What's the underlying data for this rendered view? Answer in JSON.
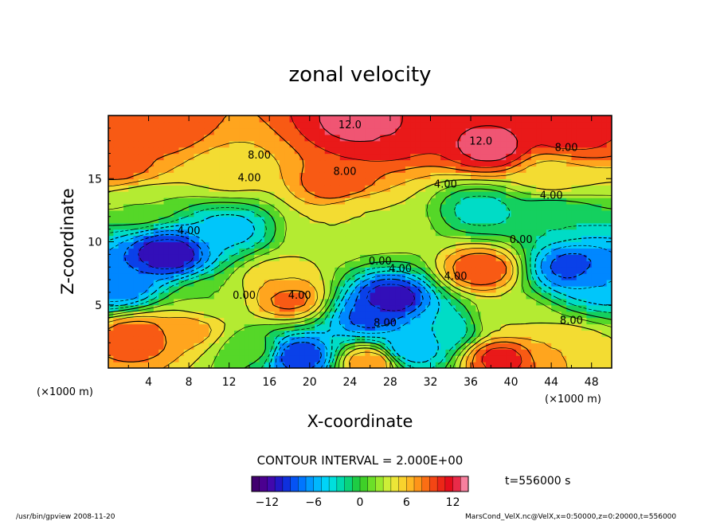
{
  "chart_data": {
    "type": "heatmap",
    "title": "zonal velocity",
    "xlabel": "X-coordinate",
    "ylabel": "Z-coordinate",
    "x_unit": "(×1000 m)",
    "z_unit": "(×1000 m)",
    "xlim": [
      0,
      50
    ],
    "ylim": [
      0,
      20
    ],
    "x_ticks": [
      "4",
      "8",
      "12",
      "16",
      "20",
      "24",
      "28",
      "32",
      "36",
      "40",
      "44",
      "48"
    ],
    "y_ticks": [
      "5",
      "10",
      "15"
    ],
    "contour_interval_text": "CONTOUR INTERVAL = 2.000E+00",
    "time_text": "t=556000 s",
    "colorbar": {
      "vmin": -14,
      "vmax": 14,
      "ticks": [
        "−12",
        "−6",
        "0",
        "6",
        "12"
      ]
    },
    "contour_labels": [
      {
        "text": "12.0",
        "x": 24.0,
        "z": 19.0
      },
      {
        "text": "12.0",
        "x": 37.0,
        "z": 17.7
      },
      {
        "text": "8.00",
        "x": 45.5,
        "z": 17.2
      },
      {
        "text": "8.00",
        "x": 15.0,
        "z": 16.6
      },
      {
        "text": "8.00",
        "x": 23.5,
        "z": 15.3
      },
      {
        "text": "4.00",
        "x": 14.0,
        "z": 14.8
      },
      {
        "text": "4.00",
        "x": 33.5,
        "z": 14.3
      },
      {
        "text": "4.00",
        "x": 44.0,
        "z": 13.4
      },
      {
        "text": "4.00",
        "x": 8.0,
        "z": 10.6
      },
      {
        "text": "0.00",
        "x": 41.0,
        "z": 9.9
      },
      {
        "text": "0.00",
        "x": 27.0,
        "z": 8.2
      },
      {
        "text": "4.00",
        "x": 29.0,
        "z": 7.6
      },
      {
        "text": "4.00",
        "x": 34.5,
        "z": 7.0
      },
      {
        "text": "0.00",
        "x": 13.5,
        "z": 5.5
      },
      {
        "text": "4.00",
        "x": 19.0,
        "z": 5.5
      },
      {
        "text": "8.00",
        "x": 46.0,
        "z": 3.5
      },
      {
        "text": "8.00",
        "x": 27.5,
        "z": 3.3
      }
    ],
    "field_features": [
      {
        "x": 25,
        "z": 19.5,
        "value": 13
      },
      {
        "x": 27,
        "z": 18.5,
        "value": 12
      },
      {
        "x": 38,
        "z": 17.5,
        "value": 13
      },
      {
        "x": 5,
        "z": 19,
        "value": 10
      },
      {
        "x": 46,
        "z": 18.5,
        "value": 11
      },
      {
        "x": 1,
        "z": 16,
        "value": 9
      },
      {
        "x": 23,
        "z": 14.5,
        "value": 10
      },
      {
        "x": 12,
        "z": 15.5,
        "value": 5
      },
      {
        "x": 44,
        "z": 15.2,
        "value": 5
      },
      {
        "x": 3,
        "z": 13,
        "value": 2
      },
      {
        "x": 25,
        "z": 12.5,
        "value": 4
      },
      {
        "x": 37,
        "z": 12.5,
        "value": -3
      },
      {
        "x": 44,
        "z": 12,
        "value": -2
      },
      {
        "x": 6,
        "z": 9,
        "value": -12
      },
      {
        "x": 1,
        "z": 6.5,
        "value": -8
      },
      {
        "x": 12,
        "z": 11,
        "value": -5
      },
      {
        "x": 17,
        "z": 7,
        "value": 6
      },
      {
        "x": 18,
        "z": 5.5,
        "value": 9
      },
      {
        "x": 22,
        "z": 10.5,
        "value": 4
      },
      {
        "x": 28,
        "z": 11,
        "value": 3
      },
      {
        "x": 37,
        "z": 7.8,
        "value": 10
      },
      {
        "x": 46,
        "z": 8,
        "value": -9
      },
      {
        "x": 49,
        "z": 7,
        "value": -6
      },
      {
        "x": 28,
        "z": 5.5,
        "value": -12
      },
      {
        "x": 26,
        "z": 4,
        "value": -9
      },
      {
        "x": 33,
        "z": 3,
        "value": -4
      },
      {
        "x": 3,
        "z": 2.5,
        "value": 10
      },
      {
        "x": 8,
        "z": 3,
        "value": 7
      },
      {
        "x": 10,
        "z": 5.5,
        "value": 2
      },
      {
        "x": 19,
        "z": 1,
        "value": -10
      },
      {
        "x": 26,
        "z": 0.5,
        "value": 8
      },
      {
        "x": 30,
        "z": 1.5,
        "value": -6
      },
      {
        "x": 39,
        "z": 0.8,
        "value": 11
      },
      {
        "x": 45,
        "z": 1.5,
        "value": 6
      },
      {
        "x": 14,
        "z": 1.5,
        "value": 1
      },
      {
        "x": 40,
        "z": 4,
        "value": 4
      }
    ]
  },
  "footer": {
    "left": "/usr/bin/gpview   2008-11-20",
    "right": "MarsCond_VelX.nc@VelX,x=0:50000,z=0:20000,t=556000"
  }
}
